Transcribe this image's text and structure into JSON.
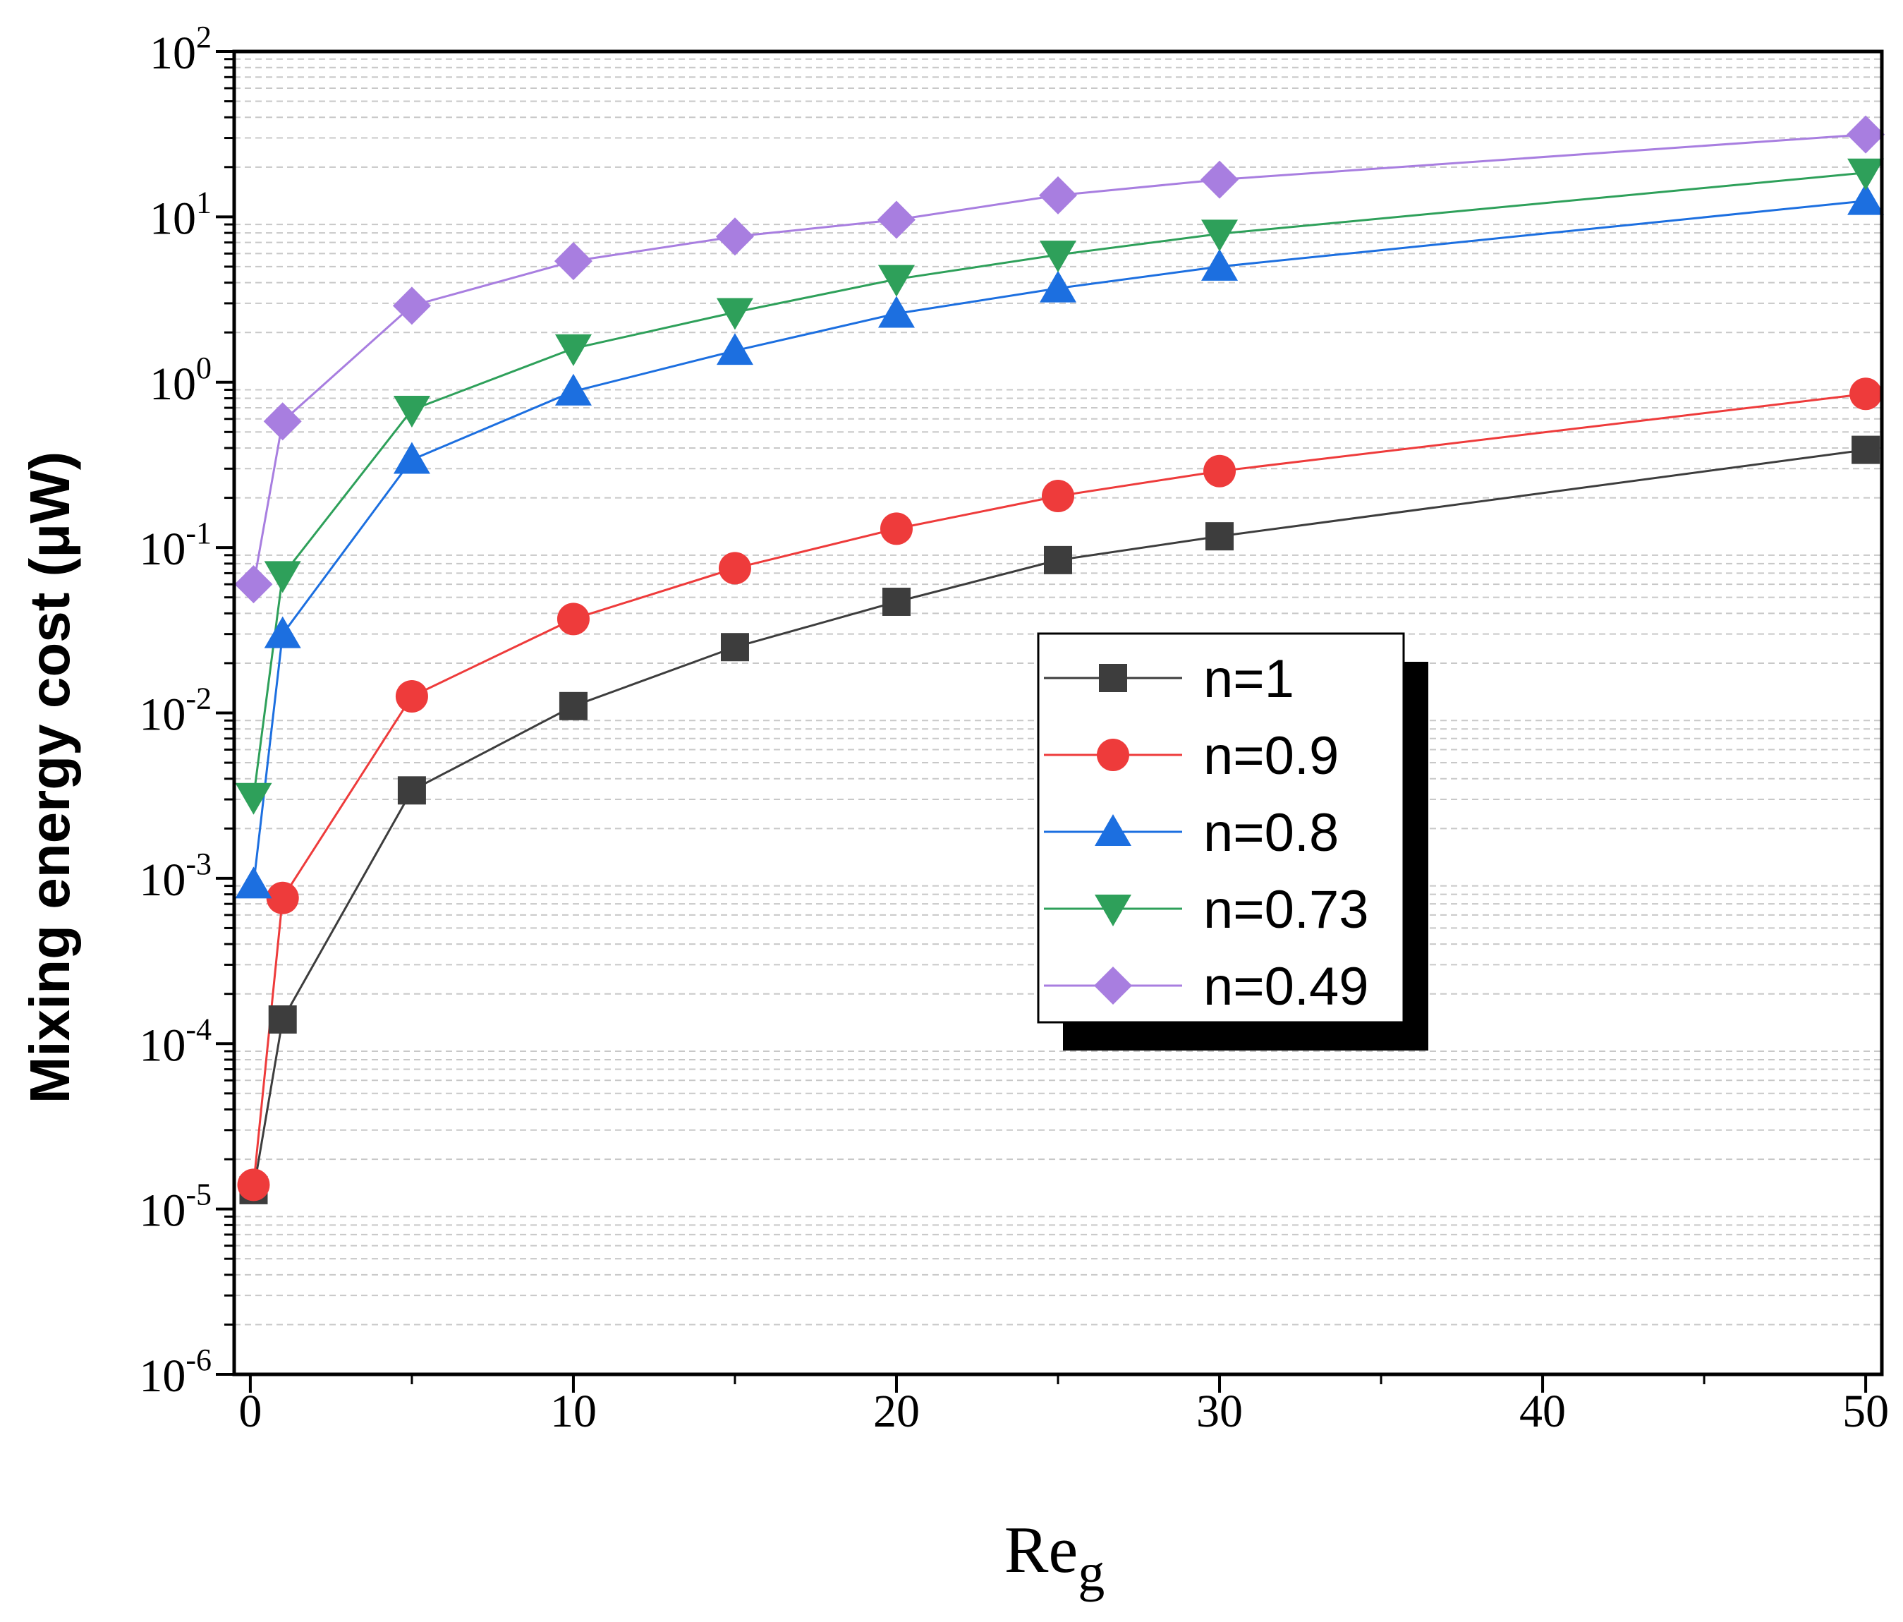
{
  "chart_data": {
    "type": "line",
    "title": "",
    "xlabel": "Re",
    "xlabel_sub": "g",
    "ylabel": "Mixing energy cost (μW)",
    "y_scale": "log",
    "xlim": [
      -0.5,
      50.5
    ],
    "ylim": [
      1e-06,
      100
    ],
    "x_ticks": [
      0,
      10,
      20,
      30,
      40,
      50
    ],
    "y_ticks": [
      1e-06,
      1e-05,
      0.0001,
      0.001,
      0.01,
      0.1,
      1,
      10,
      100
    ],
    "y_tick_labels": [
      {
        "base": "10",
        "exp": "-6"
      },
      {
        "base": "10",
        "exp": "-5"
      },
      {
        "base": "10",
        "exp": "-4"
      },
      {
        "base": "10",
        "exp": "-3"
      },
      {
        "base": "10",
        "exp": "-2"
      },
      {
        "base": "10",
        "exp": "-1"
      },
      {
        "base": "10",
        "exp": "0"
      },
      {
        "base": "10",
        "exp": "1"
      },
      {
        "base": "10",
        "exp": "2"
      }
    ],
    "grid": "minor horizontal dashed",
    "legend_position": "center-right",
    "x": [
      0.1,
      1,
      5,
      10,
      15,
      20,
      25,
      30,
      50
    ],
    "series": [
      {
        "name": "n=1",
        "marker": "square",
        "color": "#3d3d3d",
        "values": [
          1.3e-05,
          0.00014,
          0.0034,
          0.011,
          0.025,
          0.047,
          0.084,
          0.117,
          0.39
        ]
      },
      {
        "name": "n=0.9",
        "marker": "circle",
        "color": "#ee3b3b",
        "values": [
          1.4e-05,
          0.00076,
          0.0126,
          0.037,
          0.075,
          0.13,
          0.205,
          0.29,
          0.85
        ]
      },
      {
        "name": "n=0.8",
        "marker": "triangle-up",
        "color": "#1c6fe0",
        "values": [
          0.00092,
          0.03,
          0.34,
          0.88,
          1.55,
          2.6,
          3.7,
          5.0,
          12.5
        ]
      },
      {
        "name": "n=0.73",
        "marker": "triangle-down",
        "color": "#2ea05a",
        "values": [
          0.0031,
          0.068,
          0.68,
          1.6,
          2.65,
          4.2,
          5.9,
          7.9,
          18.5
        ]
      },
      {
        "name": "n=0.49",
        "marker": "diamond",
        "color": "#a87ee0",
        "values": [
          0.06,
          0.58,
          2.9,
          5.4,
          7.6,
          9.6,
          13.5,
          16.8,
          31.5
        ]
      }
    ]
  }
}
